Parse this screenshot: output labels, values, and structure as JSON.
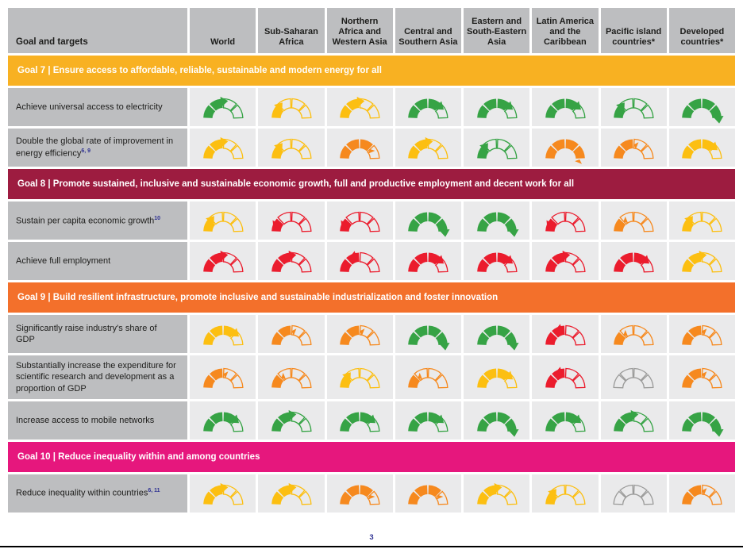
{
  "header": {
    "label_column": "Goal and targets",
    "columns": [
      "World",
      "Sub-Saharan Africa",
      "Northern Africa and Western Asia",
      "Central and Southern Asia",
      "Eastern and South-Eastern Asia",
      "Latin America and the Caribbean",
      "Pacific island countries*",
      "Developed countries*"
    ]
  },
  "palette": {
    "green": "#36A345",
    "yellow": "#FCBF11",
    "orange": "#F6891E",
    "red": "#EB1C2D",
    "gray": "#9B9B9A"
  },
  "legend_semantics": {
    "level": "number of filled gauge segments out of 4 (progress toward target)",
    "trend": "up = improving arrow, down = deteriorating arrow, flat = stagnation marker, none = no data"
  },
  "chart_data": {
    "type": "table",
    "title": "Progress gauges by goal, target and region",
    "columns": [
      "World",
      "Sub-Saharan Africa",
      "Northern Africa and Western Asia",
      "Central and Southern Asia",
      "Eastern and South-Eastern Asia",
      "Latin America and the Caribbean",
      "Pacific island countries*",
      "Developed countries*"
    ],
    "sections": [
      {
        "goal_label": "Goal 7 | Ensure access to affordable, reliable, sustainable and modern energy for all",
        "color": "#F8B122",
        "rows": [
          {
            "label": "Achieve universal access to electricity",
            "sup": "",
            "cells": [
              {
                "color": "green",
                "level": 2,
                "trend": "up"
              },
              {
                "color": "yellow",
                "level": 1,
                "trend": "up"
              },
              {
                "color": "yellow",
                "level": 2,
                "trend": "up"
              },
              {
                "color": "green",
                "level": 3,
                "trend": "up"
              },
              {
                "color": "green",
                "level": 3,
                "trend": "up"
              },
              {
                "color": "green",
                "level": 3,
                "trend": "up"
              },
              {
                "color": "green",
                "level": 1,
                "trend": "up"
              },
              {
                "color": "green",
                "level": 4,
                "trend": "up"
              }
            ]
          },
          {
            "label": "Double the global rate of improvement in energy efficiency",
            "sup": "6, 9",
            "cells": [
              {
                "color": "yellow",
                "level": 2,
                "trend": "up"
              },
              {
                "color": "yellow",
                "level": 1,
                "trend": "up"
              },
              {
                "color": "orange",
                "level": 3,
                "trend": "flat"
              },
              {
                "color": "yellow",
                "level": 2,
                "trend": "up"
              },
              {
                "color": "green",
                "level": 1,
                "trend": "up"
              },
              {
                "color": "orange",
                "level": 4,
                "trend": "flat"
              },
              {
                "color": "orange",
                "level": 2,
                "trend": "flat"
              },
              {
                "color": "yellow",
                "level": 3,
                "trend": "up"
              }
            ]
          }
        ]
      },
      {
        "goal_label": "Goal 8 | Promote sustained, inclusive and sustainable economic growth, full and productive employment and decent work for all",
        "color": "#9D1C40",
        "rows": [
          {
            "label": "Sustain per capita economic growth",
            "sup": "10",
            "cells": [
              {
                "color": "yellow",
                "level": 1,
                "trend": "up"
              },
              {
                "color": "red",
                "level": 1,
                "trend": "down"
              },
              {
                "color": "red",
                "level": 1,
                "trend": "down"
              },
              {
                "color": "green",
                "level": 4,
                "trend": "up"
              },
              {
                "color": "green",
                "level": 4,
                "trend": "up"
              },
              {
                "color": "red",
                "level": 1,
                "trend": "down"
              },
              {
                "color": "orange",
                "level": 1,
                "trend": "flat"
              },
              {
                "color": "yellow",
                "level": 1,
                "trend": "up"
              }
            ]
          },
          {
            "label": "Achieve full employment",
            "sup": "",
            "cells": [
              {
                "color": "red",
                "level": 2,
                "trend": "up"
              },
              {
                "color": "red",
                "level": 2,
                "trend": "up"
              },
              {
                "color": "red",
                "level": 2,
                "trend": "down"
              },
              {
                "color": "red",
                "level": 3,
                "trend": "up"
              },
              {
                "color": "red",
                "level": 3,
                "trend": "up"
              },
              {
                "color": "red",
                "level": 2,
                "trend": "up"
              },
              {
                "color": "red",
                "level": 3,
                "trend": "up"
              },
              {
                "color": "yellow",
                "level": 2,
                "trend": "up"
              }
            ]
          }
        ]
      },
      {
        "goal_label": "Goal 9 | Build resilient infrastructure, promote inclusive and sustainable industrialization and foster innovation",
        "color": "#F3702B",
        "rows": [
          {
            "label": "Significantly raise industry's share of GDP",
            "sup": "",
            "cells": [
              {
                "color": "yellow",
                "level": 3,
                "trend": "up"
              },
              {
                "color": "orange",
                "level": 2,
                "trend": "flat"
              },
              {
                "color": "orange",
                "level": 2,
                "trend": "flat"
              },
              {
                "color": "green",
                "level": 4,
                "trend": "up"
              },
              {
                "color": "green",
                "level": 4,
                "trend": "up"
              },
              {
                "color": "red",
                "level": 2,
                "trend": "down"
              },
              {
                "color": "orange",
                "level": 1,
                "trend": "flat"
              },
              {
                "color": "orange",
                "level": 2,
                "trend": "flat"
              }
            ]
          },
          {
            "label": "Substantially increase the expenditure for scientific research and development as a proportion of GDP",
            "sup": "",
            "cells": [
              {
                "color": "orange",
                "level": 2,
                "trend": "flat"
              },
              {
                "color": "orange",
                "level": 1,
                "trend": "flat"
              },
              {
                "color": "yellow",
                "level": 1,
                "trend": "up"
              },
              {
                "color": "orange",
                "level": 1,
                "trend": "flat"
              },
              {
                "color": "yellow",
                "level": 3,
                "trend": "up"
              },
              {
                "color": "red",
                "level": 2,
                "trend": "down"
              },
              {
                "color": "gray",
                "level": 0,
                "trend": "none"
              },
              {
                "color": "orange",
                "level": 2,
                "trend": "flat"
              }
            ]
          },
          {
            "label": "Increase access to mobile networks",
            "sup": "",
            "cells": [
              {
                "color": "green",
                "level": 3,
                "trend": "up"
              },
              {
                "color": "green",
                "level": 2,
                "trend": "up"
              },
              {
                "color": "green",
                "level": 3,
                "trend": "up"
              },
              {
                "color": "green",
                "level": 3,
                "trend": "up"
              },
              {
                "color": "green",
                "level": 4,
                "trend": "up"
              },
              {
                "color": "green",
                "level": 3,
                "trend": "up"
              },
              {
                "color": "green",
                "level": 2,
                "trend": "up"
              },
              {
                "color": "green",
                "level": 4,
                "trend": "up"
              }
            ]
          }
        ]
      },
      {
        "goal_label": "Goal 10 | Reduce inequality within and among countries",
        "color": "#E6177D",
        "rows": [
          {
            "label": "Reduce inequality within countries",
            "sup": "6, 11",
            "cells": [
              {
                "color": "yellow",
                "level": 2,
                "trend": "up"
              },
              {
                "color": "yellow",
                "level": 2,
                "trend": "up"
              },
              {
                "color": "orange",
                "level": 3,
                "trend": "flat"
              },
              {
                "color": "orange",
                "level": 3,
                "trend": "flat"
              },
              {
                "color": "yellow",
                "level": 2,
                "trend": "up"
              },
              {
                "color": "yellow",
                "level": 1,
                "trend": "up"
              },
              {
                "color": "gray",
                "level": 0,
                "trend": "none"
              },
              {
                "color": "orange",
                "level": 2,
                "trend": "flat"
              }
            ]
          }
        ]
      }
    ]
  },
  "footer": {
    "page_number": "3"
  }
}
